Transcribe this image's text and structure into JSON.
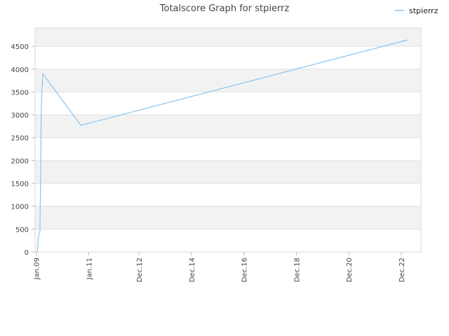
{
  "chart_data": {
    "type": "line",
    "title": "Totalscore Graph for stpierrz",
    "xlabel": "",
    "ylabel": "",
    "ylim": [
      0,
      4900
    ],
    "yticks": [
      0,
      500,
      1000,
      1500,
      2000,
      2500,
      3000,
      3500,
      4000,
      4500
    ],
    "xlim": [
      "2008-12-15",
      "2023-09-01"
    ],
    "xticks": [
      {
        "label": "Jan.09",
        "date": "2009-01-01"
      },
      {
        "label": "Jan.11",
        "date": "2011-01-01"
      },
      {
        "label": "Dec.12",
        "date": "2012-12-01"
      },
      {
        "label": "Dec.14",
        "date": "2014-12-01"
      },
      {
        "label": "Dec.16",
        "date": "2016-12-01"
      },
      {
        "label": "Dec.18",
        "date": "2018-12-01"
      },
      {
        "label": "Dec.20",
        "date": "2020-12-01"
      },
      {
        "label": "Dec.22",
        "date": "2022-12-01"
      }
    ],
    "grid": true,
    "legend_position": "top-right",
    "colors": {
      "line": "#87c4f0",
      "band": "#f2f2f2",
      "grid": "#e2e2e2",
      "axis": "#d8d8d8"
    },
    "series": [
      {
        "name": "stpierrz",
        "points": [
          {
            "x": "2009-01-15",
            "y": 0
          },
          {
            "x": "2009-02-01",
            "y": 350
          },
          {
            "x": "2009-02-20",
            "y": 450
          },
          {
            "x": "2009-03-01",
            "y": 1500
          },
          {
            "x": "2009-03-10",
            "y": 3000
          },
          {
            "x": "2009-03-20",
            "y": 3500
          },
          {
            "x": "2009-04-01",
            "y": 3900
          },
          {
            "x": "2010-09-15",
            "y": 2770
          },
          {
            "x": "2023-03-01",
            "y": 4640
          }
        ]
      }
    ]
  }
}
